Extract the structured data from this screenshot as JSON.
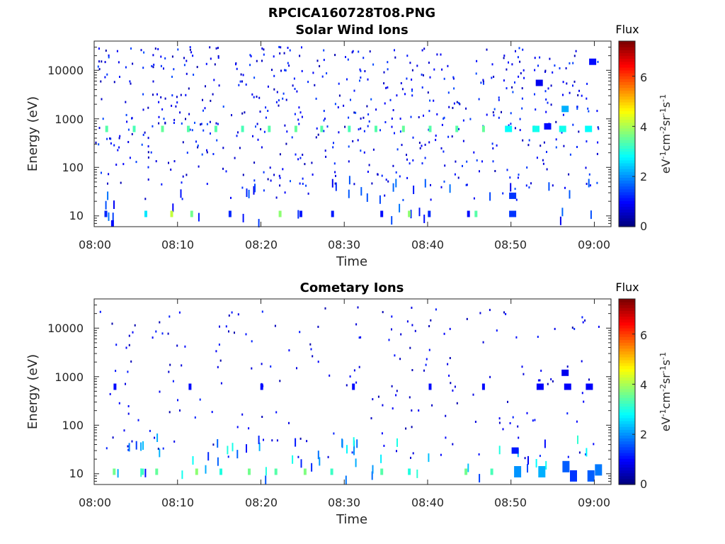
{
  "figure_title": "RPCICA160728T08.PNG",
  "chart_data": [
    {
      "type": "heatmap",
      "title": "Solar Wind Ions",
      "xlabel": "Time",
      "ylabel": "Energy (eV)",
      "x_ticks": [
        "08:00",
        "08:10",
        "08:20",
        "08:30",
        "08:40",
        "08:50",
        "09:00"
      ],
      "x_range": [
        "08:00",
        "09:02"
      ],
      "y_scale": "log",
      "y_ticks": [
        10,
        100,
        1000,
        10000
      ],
      "y_tick_labels": [
        "10",
        "100",
        "1000",
        "10000"
      ],
      "y_range": [
        6,
        40000
      ],
      "colorbar": {
        "label": "eV-1cm-2sr-1s-1",
        "title": "Flux",
        "ticks": [
          0,
          2,
          4,
          6
        ],
        "range": [
          0,
          7.4
        ],
        "colormap": "jet"
      },
      "cells": [
        {
          "t": 1.5,
          "e": 620,
          "v": 3.4
        },
        {
          "t": 4.8,
          "e": 620,
          "v": 3.3
        },
        {
          "t": 8.2,
          "e": 620,
          "v": 3.5
        },
        {
          "t": 11.3,
          "e": 620,
          "v": 3.4
        },
        {
          "t": 14.6,
          "e": 620,
          "v": 3.4
        },
        {
          "t": 17.8,
          "e": 620,
          "v": 3.3
        },
        {
          "t": 21.0,
          "e": 620,
          "v": 3.4
        },
        {
          "t": 24.2,
          "e": 620,
          "v": 3.5
        },
        {
          "t": 27.3,
          "e": 620,
          "v": 3.4
        },
        {
          "t": 30.6,
          "e": 620,
          "v": 3.3
        },
        {
          "t": 33.8,
          "e": 620,
          "v": 3.4
        },
        {
          "t": 37.1,
          "e": 620,
          "v": 3.5
        },
        {
          "t": 40.3,
          "e": 620,
          "v": 3.4
        },
        {
          "t": 43.5,
          "e": 620,
          "v": 3.4
        },
        {
          "t": 46.7,
          "e": 620,
          "v": 3.5
        },
        {
          "t": 49.7,
          "e": 620,
          "v": 2.8
        },
        {
          "t": 53.0,
          "e": 620,
          "v": 2.9
        },
        {
          "t": 56.2,
          "e": 620,
          "v": 2.9
        },
        {
          "t": 59.3,
          "e": 620,
          "v": 2.8
        },
        {
          "t": 1.4,
          "e": 11,
          "v": 1.2
        },
        {
          "t": 2.2,
          "e": 7,
          "v": 1.0
        },
        {
          "t": 6.2,
          "e": 11,
          "v": 2.6
        },
        {
          "t": 9.3,
          "e": 11,
          "v": 4.2
        },
        {
          "t": 11.7,
          "e": 11,
          "v": 3.6
        },
        {
          "t": 16.3,
          "e": 11,
          "v": 1.2
        },
        {
          "t": 22.3,
          "e": 11,
          "v": 3.8
        },
        {
          "t": 24.8,
          "e": 11,
          "v": 1.1
        },
        {
          "t": 28.6,
          "e": 11,
          "v": 1.1
        },
        {
          "t": 34.5,
          "e": 11,
          "v": 1.0
        },
        {
          "t": 37.8,
          "e": 11,
          "v": 3.8
        },
        {
          "t": 40.2,
          "e": 11,
          "v": 1.2
        },
        {
          "t": 44.9,
          "e": 11,
          "v": 1.0
        },
        {
          "t": 45.8,
          "e": 11,
          "v": 3.4
        },
        {
          "t": 50.2,
          "e": 11,
          "v": 1.3
        },
        {
          "t": 50.2,
          "e": 26,
          "v": 1.3
        },
        {
          "t": 56.5,
          "e": 1600,
          "v": 2.2
        },
        {
          "t": 54.4,
          "e": 700,
          "v": 1.0
        },
        {
          "t": 53.4,
          "e": 5500,
          "v": 0.8
        },
        {
          "t": 59.8,
          "e": 15000,
          "v": 1.0
        }
      ]
    },
    {
      "type": "heatmap",
      "title": "Cometary Ions",
      "xlabel": "Time",
      "ylabel": "Energy (eV)",
      "x_ticks": [
        "08:00",
        "08:10",
        "08:20",
        "08:30",
        "08:40",
        "08:50",
        "09:00"
      ],
      "x_range": [
        "08:00",
        "09:02"
      ],
      "y_scale": "log",
      "y_ticks": [
        10,
        100,
        1000,
        10000
      ],
      "y_tick_labels": [
        "10",
        "100",
        "1000",
        "10000"
      ],
      "y_range": [
        6,
        40000
      ],
      "colorbar": {
        "label": "eV-1cm-2sr-1s-1",
        "title": "Flux",
        "ticks": [
          0,
          2,
          4,
          6
        ],
        "range": [
          0,
          7.4
        ],
        "colormap": "jet"
      },
      "cells": [
        {
          "t": 2.4,
          "e": 11,
          "v": 3.6
        },
        {
          "t": 5.8,
          "e": 11,
          "v": 3.2
        },
        {
          "t": 7.5,
          "e": 11,
          "v": 3.5
        },
        {
          "t": 12.3,
          "e": 11,
          "v": 3.8
        },
        {
          "t": 15.2,
          "e": 11,
          "v": 3.0
        },
        {
          "t": 18.6,
          "e": 11,
          "v": 3.6
        },
        {
          "t": 21.8,
          "e": 11,
          "v": 3.4
        },
        {
          "t": 25.3,
          "e": 11,
          "v": 3.7
        },
        {
          "t": 28.5,
          "e": 11,
          "v": 3.2
        },
        {
          "t": 34.5,
          "e": 11,
          "v": 3.4
        },
        {
          "t": 37.8,
          "e": 11,
          "v": 3.0
        },
        {
          "t": 44.6,
          "e": 11,
          "v": 3.6
        },
        {
          "t": 47.7,
          "e": 11,
          "v": 3.3
        },
        {
          "t": 50.8,
          "e": 11,
          "v": 2.0
        },
        {
          "t": 53.7,
          "e": 11,
          "v": 2.2
        },
        {
          "t": 56.6,
          "e": 14,
          "v": 1.6
        },
        {
          "t": 57.5,
          "e": 9,
          "v": 1.3
        },
        {
          "t": 60.5,
          "e": 12,
          "v": 1.8
        },
        {
          "t": 59.6,
          "e": 9,
          "v": 1.6
        },
        {
          "t": 50.5,
          "e": 30,
          "v": 1.1
        },
        {
          "t": 2.5,
          "e": 620,
          "v": 1.0
        },
        {
          "t": 11.5,
          "e": 620,
          "v": 1.0
        },
        {
          "t": 20.1,
          "e": 620,
          "v": 1.0
        },
        {
          "t": 31.1,
          "e": 620,
          "v": 1.0
        },
        {
          "t": 40.3,
          "e": 620,
          "v": 1.0
        },
        {
          "t": 46.7,
          "e": 620,
          "v": 1.0
        },
        {
          "t": 53.5,
          "e": 620,
          "v": 0.9
        },
        {
          "t": 56.8,
          "e": 620,
          "v": 0.9
        },
        {
          "t": 59.4,
          "e": 620,
          "v": 0.9
        },
        {
          "t": 56.5,
          "e": 1200,
          "v": 0.8
        }
      ]
    }
  ]
}
